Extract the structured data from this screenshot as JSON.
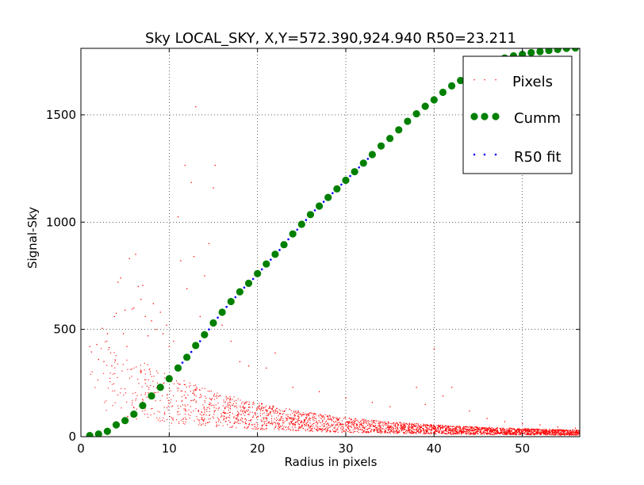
{
  "chart_data": {
    "type": "scatter",
    "title": "Sky LOCAL_SKY, X,Y=572.390,924.940 R50=23.211",
    "xlabel": "Radius in pixels",
    "ylabel": "Signal-Sky",
    "xlim": [
      0,
      56.5
    ],
    "ylim": [
      0,
      1810
    ],
    "xticks": [
      0,
      10,
      20,
      30,
      40,
      50
    ],
    "yticks": [
      0,
      500,
      1000,
      1500
    ],
    "grid": true,
    "legend_position": "top-right",
    "colors": {
      "pixels": "#ff0000",
      "cumm": "#008000",
      "fit": "#0000ff"
    },
    "series": [
      {
        "name": "Pixels",
        "style": "small-dots",
        "note_trend": "dense pixel scatter declining from ~300 at r~5 to ~15 at r~56",
        "points": [
          [
            1.0,
            420
          ],
          [
            1.2,
            395
          ],
          [
            1.8,
            430
          ],
          [
            2.0,
            360
          ],
          [
            2.4,
            505
          ],
          [
            2.6,
            350
          ],
          [
            3.0,
            480
          ],
          [
            3.2,
            415
          ],
          [
            3.5,
            330
          ],
          [
            3.8,
            560
          ],
          [
            4.0,
            575
          ],
          [
            4.2,
            720
          ],
          [
            4.5,
            740
          ],
          [
            4.8,
            480
          ],
          [
            5.0,
            590
          ],
          [
            5.2,
            420
          ],
          [
            5.5,
            830
          ],
          [
            5.8,
            595
          ],
          [
            6.0,
            600
          ],
          [
            6.2,
            850
          ],
          [
            6.5,
            700
          ],
          [
            6.8,
            640
          ],
          [
            7.0,
            705
          ],
          [
            7.3,
            560
          ],
          [
            7.6,
            470
          ],
          [
            8.0,
            540
          ],
          [
            8.2,
            620
          ],
          [
            8.5,
            500
          ],
          [
            9.0,
            580
          ],
          [
            9.3,
            480
          ],
          [
            9.7,
            520
          ],
          [
            10.0,
            420
          ],
          [
            10.5,
            445
          ],
          [
            11.0,
            1025
          ],
          [
            11.3,
            820
          ],
          [
            11.8,
            1265
          ],
          [
            12.0,
            690
          ],
          [
            12.5,
            1185
          ],
          [
            12.8,
            840
          ],
          [
            13.0,
            1538
          ],
          [
            13.5,
            560
          ],
          [
            14.0,
            750
          ],
          [
            14.5,
            900
          ],
          [
            15.0,
            1160
          ],
          [
            15.2,
            1265
          ],
          [
            16.0,
            520
          ],
          [
            17.0,
            445
          ],
          [
            18.0,
            350
          ],
          [
            19.0,
            330
          ],
          [
            21.0,
            320
          ],
          [
            22.0,
            390
          ],
          [
            24.0,
            230
          ],
          [
            27.0,
            210
          ],
          [
            30.0,
            180
          ],
          [
            33.0,
            160
          ],
          [
            35.0,
            140
          ],
          [
            38.0,
            230
          ],
          [
            39.0,
            150
          ],
          [
            40.0,
            410
          ],
          [
            41.0,
            190
          ],
          [
            42.0,
            230
          ],
          [
            44.0,
            120
          ],
          [
            46.0,
            85
          ],
          [
            48.0,
            70
          ],
          [
            50.0,
            60
          ],
          [
            52.0,
            55
          ],
          [
            54.0,
            45
          ],
          [
            56.0,
            40
          ]
        ]
      },
      {
        "name": "Cumm",
        "style": "large-dots",
        "x": [
          1,
          2,
          3,
          4,
          5,
          6,
          7,
          8,
          9,
          10,
          11,
          12,
          13,
          14,
          15,
          16,
          17,
          18,
          19,
          20,
          21,
          22,
          23,
          24,
          25,
          26,
          27,
          28,
          29,
          30,
          31,
          32,
          33,
          34,
          35,
          36,
          37,
          38,
          39,
          40,
          41,
          42,
          43,
          44,
          45,
          46,
          47,
          48,
          49,
          50,
          51,
          52,
          53,
          54,
          55,
          56
        ],
        "y": [
          5,
          12,
          25,
          55,
          75,
          105,
          145,
          190,
          230,
          270,
          320,
          370,
          425,
          475,
          530,
          580,
          630,
          675,
          715,
          760,
          805,
          850,
          895,
          945,
          990,
          1035,
          1075,
          1115,
          1155,
          1195,
          1235,
          1275,
          1315,
          1355,
          1390,
          1430,
          1470,
          1505,
          1540,
          1570,
          1605,
          1635,
          1660,
          1690,
          1715,
          1735,
          1750,
          1765,
          1775,
          1782,
          1790,
          1795,
          1800,
          1805,
          1810,
          1812
        ]
      },
      {
        "name": "R50 fit",
        "style": "small-dots",
        "x": [
          11.5,
          12.5,
          13.5,
          14.5,
          15.5,
          16.5,
          17.5,
          18.5,
          19.5,
          20.5,
          21.5,
          22.5,
          23.5,
          24.5,
          25.5,
          26.5,
          27.5,
          28.5,
          29.5,
          30.5,
          31.5,
          32.5,
          33.0
        ],
        "y": [
          345,
          395,
          445,
          500,
          555,
          605,
          650,
          695,
          735,
          780,
          825,
          870,
          920,
          965,
          1010,
          1055,
          1095,
          1135,
          1175,
          1215,
          1255,
          1295,
          1310
        ]
      }
    ]
  }
}
